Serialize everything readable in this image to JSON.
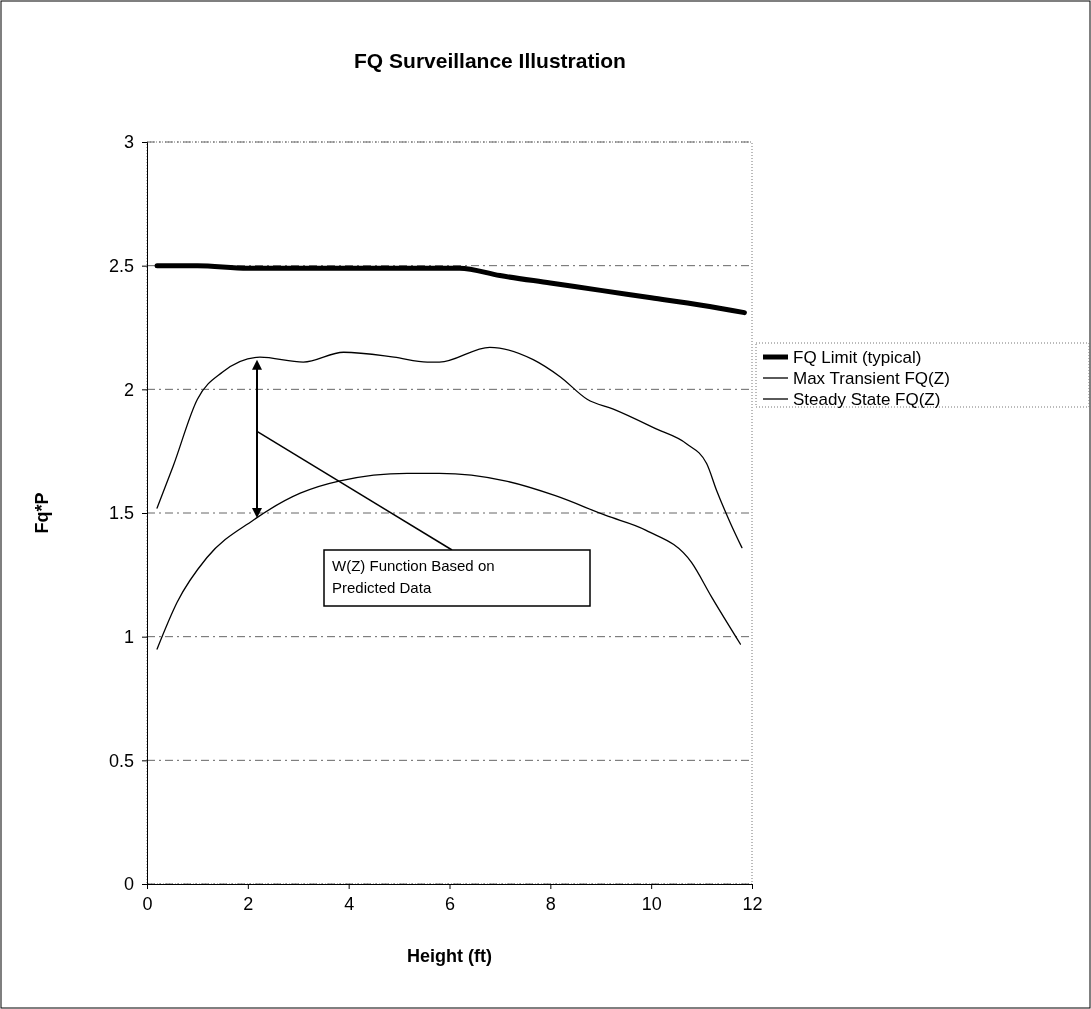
{
  "chart_data": {
    "type": "line",
    "title": "FQ Surveillance Illustration",
    "xlabel": "Height (ft)",
    "ylabel": "Fq*P",
    "xlim": [
      0,
      12
    ],
    "xticks": [
      0,
      2,
      4,
      6,
      8,
      10,
      12
    ],
    "ylim": [
      0,
      3
    ],
    "yticks": [
      0,
      0.5,
      1,
      1.5,
      2,
      2.5,
      3
    ],
    "grid": "y",
    "legend": "right",
    "annotations": [
      "W(Z) Function Based on Predicted Data"
    ],
    "series": [
      {
        "name": "FQ Limit (typical)",
        "color": "#000000",
        "x": [
          0.2,
          1,
          2,
          3,
          4,
          5,
          6.2,
          7,
          8,
          9,
          10,
          11,
          11.85
        ],
        "values": [
          2.5,
          2.5,
          2.49,
          2.49,
          2.49,
          2.49,
          2.49,
          2.46,
          2.43,
          2.4,
          2.37,
          2.34,
          2.31
        ]
      },
      {
        "name": "Max Transient FQ(Z)",
        "color": "#000000",
        "x": [
          0.2,
          0.52,
          1,
          1.5,
          2.24,
          3.1,
          3.9,
          4.9,
          5.56,
          5.8,
          6.8,
          7.66,
          8.2,
          8.73,
          9.25,
          10.1,
          10.7,
          11.1,
          11.3,
          11.57,
          11.8
        ],
        "values": [
          1.52,
          1.69,
          1.96,
          2.07,
          2.13,
          2.11,
          2.15,
          2.13,
          2.11,
          2.11,
          2.17,
          2.12,
          2.05,
          1.96,
          1.92,
          1.84,
          1.78,
          1.7,
          1.59,
          1.46,
          1.36
        ]
      },
      {
        "name": "Steady State FQ(Z)",
        "color": "#000000",
        "x": [
          0.2,
          0.6,
          1.19,
          2.1,
          3.04,
          3.83,
          5.16,
          5.8,
          7.1,
          8.1,
          9.1,
          9.9,
          10.8,
          11.2,
          11.77
        ],
        "values": [
          0.95,
          1.14,
          1.32,
          1.47,
          1.58,
          1.63,
          1.66,
          1.66,
          1.63,
          1.57,
          1.49,
          1.43,
          1.3,
          1.16,
          0.97
        ]
      }
    ]
  }
}
